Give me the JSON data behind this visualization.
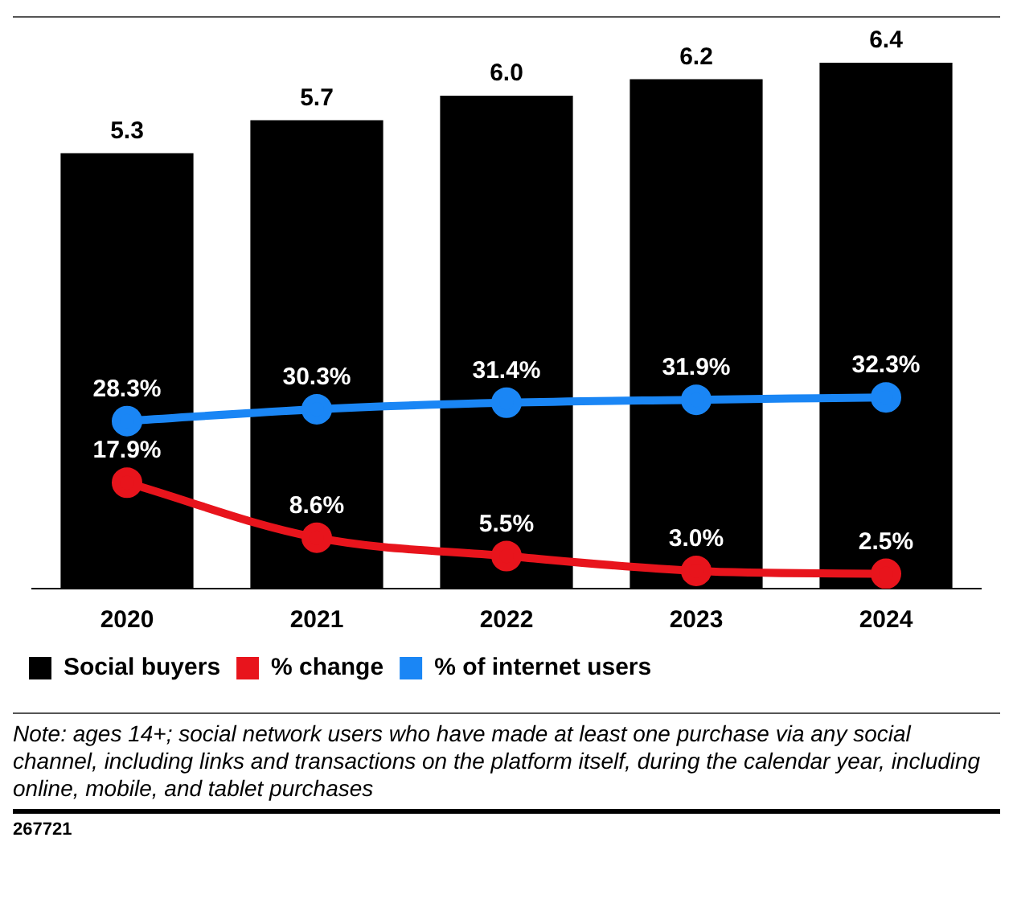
{
  "chart_data": {
    "type": "bar",
    "categories": [
      "2020",
      "2021",
      "2022",
      "2023",
      "2024"
    ],
    "legend": "bottom left",
    "series": [
      {
        "name": "Social buyers",
        "color": "#000000",
        "values": [
          5.3,
          5.7,
          6.0,
          6.2,
          6.4
        ],
        "value_labels": [
          "5.3",
          "5.7",
          "6.0",
          "6.2",
          "6.4"
        ]
      },
      {
        "name": "% change",
        "type": "line",
        "axis": "y2",
        "color": "#e8141c",
        "marker": "circle",
        "values": [
          17.9,
          8.6,
          5.5,
          3.0,
          2.5
        ],
        "value_labels": [
          "17.9%",
          "8.6%",
          "5.5%",
          "3.0%",
          "2.5%"
        ]
      },
      {
        "name": "% of internet users",
        "type": "line",
        "axis": "y2",
        "color": "#1a86f5",
        "marker": "circle",
        "values": [
          28.3,
          30.3,
          31.4,
          31.9,
          32.3
        ],
        "value_labels": [
          "28.3%",
          "30.3%",
          "31.4%",
          "31.9%",
          "32.3%"
        ]
      }
    ],
    "annotations": [
      "Note: ages 14+; social network users who have made at least one purchase via any social channel, including links and transactions on the platform itself, during the calendar year, including online, mobile, and tablet purchases",
      "267721"
    ]
  }
}
